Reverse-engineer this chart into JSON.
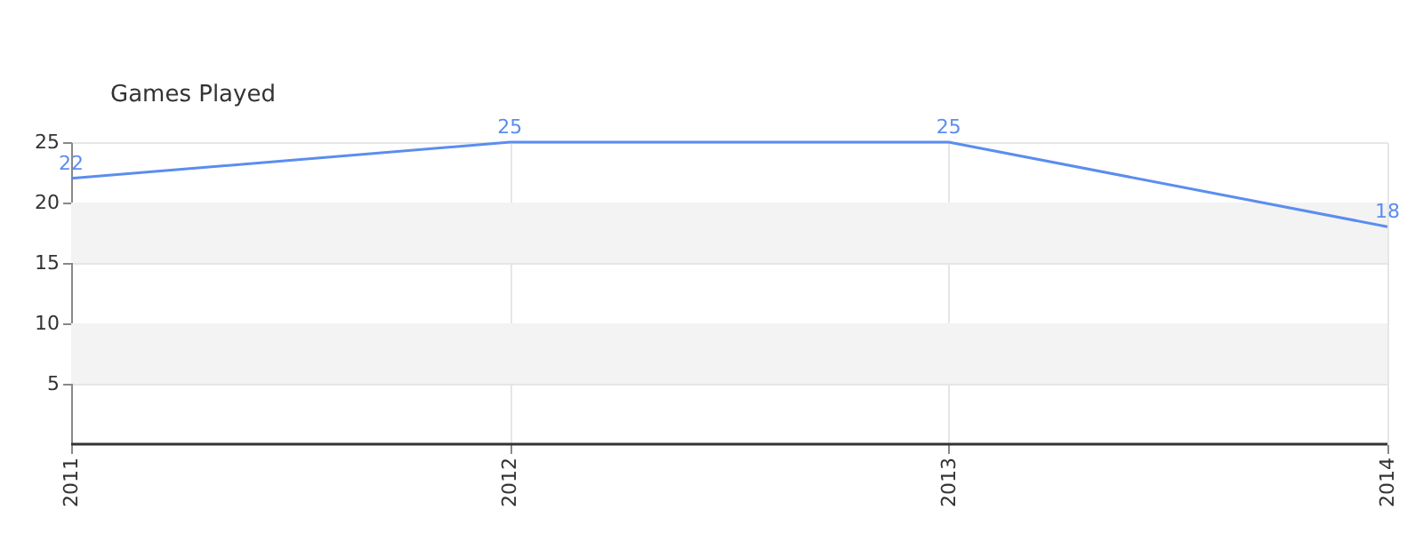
{
  "chart_data": {
    "type": "line",
    "title": "Games Played",
    "categories": [
      "2011",
      "2012",
      "2013",
      "2014"
    ],
    "series": [
      {
        "color": "#5b8def",
        "values": [
          22,
          25,
          25,
          18
        ]
      }
    ],
    "ylim": [
      0,
      25
    ],
    "yticks": [
      5,
      10,
      15,
      20,
      25
    ],
    "bands": [
      {
        "axis": "y",
        "from": 5,
        "to": 10,
        "color": "#f3f3f3"
      },
      {
        "axis": "y",
        "from": 15,
        "to": 20,
        "color": "#f3f3f3"
      }
    ],
    "grid": true,
    "data_labels": true,
    "marker": "none"
  }
}
